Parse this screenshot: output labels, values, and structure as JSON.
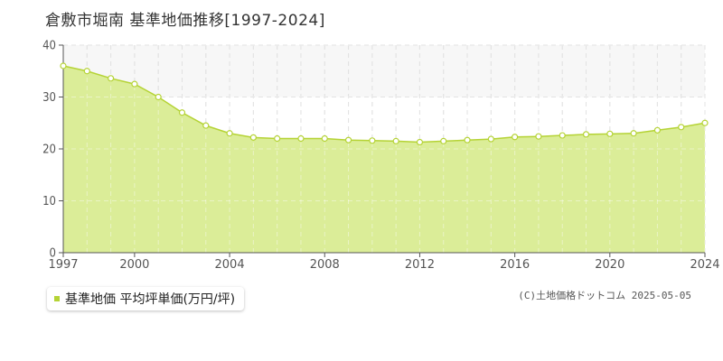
{
  "header": {
    "title": "倉敷市堀南 基準地価推移[1997-2024]"
  },
  "legend": {
    "label": "基準地価 平均坪単価(万円/坪)"
  },
  "footer": {
    "credit": "(C)土地価格ドットコム 2025-05-05"
  },
  "colors": {
    "fill": "#d9ec92",
    "line": "#b5d335",
    "grid": "#cccccc",
    "band": "#f7f7f7"
  },
  "chart_data": {
    "type": "area",
    "title": "倉敷市堀南 基準地価推移[1997-2024]",
    "x": [
      1997,
      1998,
      1999,
      2000,
      2001,
      2002,
      2003,
      2004,
      2005,
      2006,
      2007,
      2008,
      2009,
      2010,
      2011,
      2012,
      2013,
      2014,
      2015,
      2016,
      2017,
      2018,
      2019,
      2020,
      2021,
      2022,
      2023,
      2024
    ],
    "series": [
      {
        "name": "基準地価 平均坪単価(万円/坪)",
        "values": [
          36.0,
          35.0,
          33.6,
          32.5,
          30.0,
          27.0,
          24.5,
          23.0,
          22.2,
          22.0,
          22.0,
          22.0,
          21.7,
          21.6,
          21.5,
          21.3,
          21.5,
          21.7,
          21.9,
          22.3,
          22.4,
          22.6,
          22.8,
          22.9,
          23.0,
          23.6,
          24.2,
          25.0
        ]
      }
    ],
    "xlim": [
      1997,
      2024
    ],
    "ylim": [
      0,
      40
    ],
    "yticks": [
      0,
      10,
      20,
      30,
      40
    ],
    "xticks": [
      1997,
      2000,
      2004,
      2008,
      2012,
      2016,
      2020,
      2024
    ],
    "xlabel": "",
    "ylabel": "",
    "grid": true,
    "legend_position": "bottom-left"
  }
}
